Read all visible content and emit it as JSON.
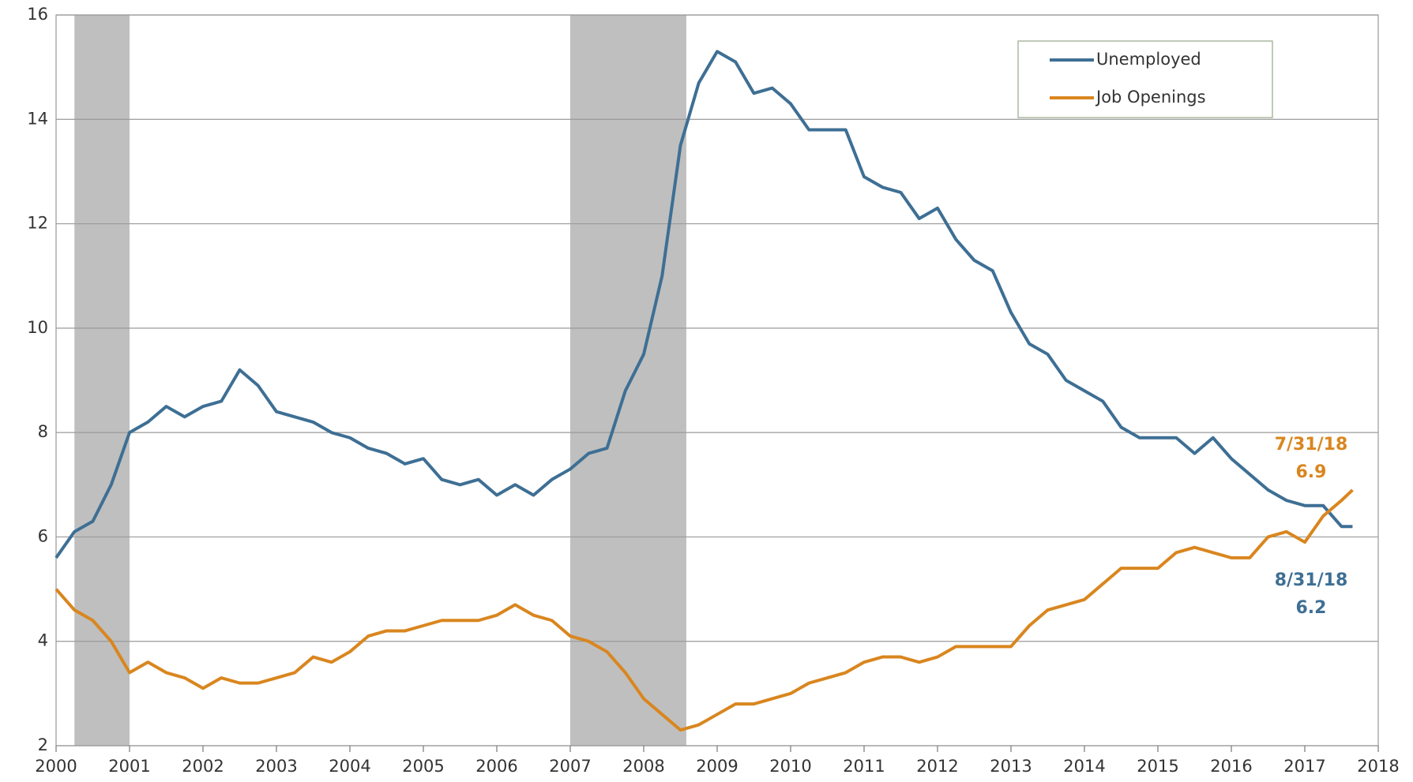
{
  "chart_data": {
    "type": "line",
    "x": [
      2000,
      2000.25,
      2000.5,
      2000.75,
      2001,
      2001.25,
      2001.5,
      2001.75,
      2002,
      2002.25,
      2002.5,
      2002.75,
      2003,
      2003.25,
      2003.5,
      2003.75,
      2004,
      2004.25,
      2004.5,
      2004.75,
      2005,
      2005.25,
      2005.5,
      2005.75,
      2006,
      2006.25,
      2006.5,
      2006.75,
      2007,
      2007.25,
      2007.5,
      2007.75,
      2008,
      2008.25,
      2008.5,
      2008.75,
      2009,
      2009.25,
      2009.5,
      2009.75,
      2010,
      2010.25,
      2010.5,
      2010.75,
      2011,
      2011.25,
      2011.5,
      2011.75,
      2012,
      2012.25,
      2012.5,
      2012.75,
      2013,
      2013.25,
      2013.5,
      2013.75,
      2014,
      2014.25,
      2014.5,
      2014.75,
      2015,
      2015.25,
      2015.5,
      2015.75,
      2016,
      2016.25,
      2016.5,
      2016.75,
      2017,
      2017.25,
      2017.5,
      2017.65
    ],
    "series": [
      {
        "name": "Unemployed",
        "color": "#3e6f94",
        "values": [
          5.6,
          6.1,
          6.3,
          7.0,
          8.0,
          8.2,
          8.5,
          8.3,
          8.5,
          8.6,
          9.2,
          8.9,
          8.4,
          8.3,
          8.2,
          8.0,
          7.9,
          7.7,
          7.6,
          7.4,
          7.5,
          7.1,
          7.0,
          7.1,
          6.8,
          7.0,
          6.8,
          7.1,
          7.3,
          7.6,
          7.7,
          8.8,
          9.5,
          11.0,
          13.5,
          14.7,
          15.3,
          15.1,
          14.5,
          14.6,
          14.3,
          13.8,
          13.8,
          13.8,
          12.9,
          12.7,
          12.6,
          12.1,
          12.3,
          11.7,
          11.3,
          11.1,
          10.3,
          9.7,
          9.5,
          9.0,
          8.8,
          8.6,
          8.1,
          7.9,
          7.9,
          7.9,
          7.6,
          7.9,
          7.5,
          7.2,
          6.9,
          6.7,
          6.6,
          6.6,
          6.2,
          6.2
        ]
      },
      {
        "name": "Job Openings",
        "color": "#d9861f",
        "values": [
          5.0,
          4.6,
          4.4,
          4.0,
          3.4,
          3.6,
          3.4,
          3.3,
          3.1,
          3.3,
          3.2,
          3.2,
          3.3,
          3.4,
          3.7,
          3.6,
          3.8,
          4.1,
          4.2,
          4.2,
          4.3,
          4.4,
          4.4,
          4.4,
          4.5,
          4.7,
          4.5,
          4.4,
          4.1,
          4.0,
          3.8,
          3.4,
          2.9,
          2.6,
          2.3,
          2.4,
          2.6,
          2.8,
          2.8,
          2.9,
          3.0,
          3.2,
          3.3,
          3.4,
          3.6,
          3.7,
          3.7,
          3.6,
          3.7,
          3.9,
          3.9,
          3.9,
          3.9,
          4.3,
          4.6,
          4.7,
          4.8,
          5.1,
          5.4,
          5.4,
          5.4,
          5.7,
          5.8,
          5.7,
          5.6,
          5.6,
          6.0,
          6.1,
          5.9,
          6.4,
          6.7,
          6.9
        ]
      }
    ],
    "shaded_ranges": [
      [
        2000.25,
        2001.0
      ],
      [
        2007.0,
        2008.58
      ]
    ],
    "shade_color": "#bfbfbf",
    "xlim": [
      2000,
      2018
    ],
    "xticks": [
      2000,
      2001,
      2002,
      2003,
      2004,
      2005,
      2006,
      2007,
      2008,
      2009,
      2010,
      2011,
      2012,
      2013,
      2014,
      2015,
      2016,
      2017,
      2018
    ],
    "ylim": [
      2,
      16
    ],
    "yticks": [
      2,
      4,
      6,
      8,
      10,
      12,
      14,
      16
    ],
    "grid": true,
    "annotations": [
      {
        "lines": [
          "7/31/18",
          "6.9"
        ],
        "color": "#d9861f"
      },
      {
        "lines": [
          "8/31/18",
          "6.2"
        ],
        "color": "#3e6f94"
      }
    ]
  }
}
